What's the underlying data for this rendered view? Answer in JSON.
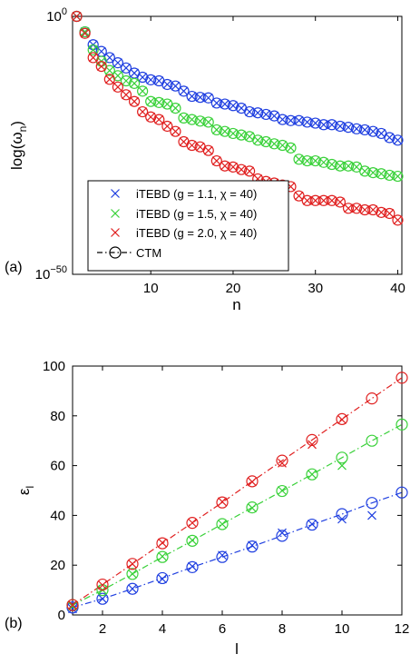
{
  "colors": {
    "g11": "#1f3fe0",
    "g15": "#3ad13a",
    "g20": "#e02020",
    "axis": "#000000"
  },
  "chart_data": [
    {
      "id": "a",
      "type": "scatter",
      "panel_label": "(a)",
      "xlabel": "n",
      "ylabel": "log(ω_n)",
      "ylabel_main": "log(ω",
      "ylabel_sub": "n",
      "ylabel_close": ")",
      "xlim": [
        0.5,
        40.5
      ],
      "ylim": [
        -50,
        0
      ],
      "y_scale": "log10 (exponent shown)",
      "xticks": [
        10,
        20,
        30,
        40
      ],
      "xtick_labels": [
        "10",
        "20",
        "30",
        "40"
      ],
      "yticks": [
        {
          "value": 0,
          "base": "10",
          "exp": "0"
        },
        {
          "value": -50,
          "base": "10",
          "exp": "−50"
        }
      ],
      "grid": false,
      "legend_position": "bottom-left",
      "legend": [
        {
          "label": "iTEBD (g = 1.1, χ = 40)",
          "marker": "x",
          "color_key": "g11"
        },
        {
          "label": "iTEBD (g = 1.5, χ = 40)",
          "marker": "x",
          "color_key": "g15"
        },
        {
          "label": "iTEBD (g = 2.0, χ = 40)",
          "marker": "x",
          "color_key": "g20"
        },
        {
          "label": "CTM",
          "marker": "o-dashdot",
          "color_key": "axis"
        }
      ],
      "x": [
        1,
        2,
        3,
        4,
        5,
        6,
        7,
        8,
        9,
        10,
        11,
        12,
        13,
        14,
        15,
        16,
        17,
        18,
        19,
        20,
        21,
        22,
        23,
        24,
        25,
        26,
        27,
        28,
        29,
        30,
        31,
        32,
        33,
        34,
        35,
        36,
        37,
        38,
        39,
        40
      ],
      "series": [
        {
          "name": "g = 1.1",
          "color_key": "g11",
          "values": [
            0,
            -3,
            -5.5,
            -6.8,
            -8,
            -9,
            -10,
            -11,
            -11.8,
            -12.3,
            -12.5,
            -13.2,
            -13.5,
            -14.5,
            -15.5,
            -15.7,
            -15.8,
            -16.8,
            -17,
            -17.3,
            -17.8,
            -18.5,
            -18.7,
            -19,
            -19.3,
            -20,
            -20.2,
            -20.2,
            -20.5,
            -20.7,
            -21,
            -21,
            -21.3,
            -21.5,
            -21.8,
            -22,
            -22.3,
            -22.7,
            -23.5,
            -24
          ]
        },
        {
          "name": "g = 1.5",
          "color_key": "g15",
          "values": [
            0,
            -3,
            -6.5,
            -8.7,
            -10.5,
            -11.5,
            -12.5,
            -13,
            -14.5,
            -16.5,
            -16.7,
            -17,
            -17.8,
            -19.7,
            -20,
            -20.3,
            -20.5,
            -22,
            -22.3,
            -22.7,
            -23,
            -23.3,
            -24,
            -24.3,
            -24.7,
            -25,
            -25.5,
            -27.7,
            -28,
            -28,
            -28.3,
            -28.7,
            -29,
            -29,
            -29.2,
            -30,
            -30.3,
            -30.5,
            -30.8,
            -31
          ]
        },
        {
          "name": "g = 2.0",
          "color_key": "g20",
          "values": [
            0,
            -3.3,
            -8,
            -9.7,
            -12.2,
            -13.7,
            -15.2,
            -16.5,
            -18.5,
            -19.5,
            -20,
            -21.3,
            -22.3,
            -24.3,
            -25,
            -25.3,
            -26,
            -28,
            -29,
            -29.2,
            -29.7,
            -30,
            -31.5,
            -32,
            -32.3,
            -32.7,
            -33,
            -34.8,
            -35.7,
            -35.7,
            -35.7,
            -35.7,
            -36,
            -37.2,
            -37.2,
            -37.5,
            -37.5,
            -38,
            -38.2,
            -39.5
          ]
        }
      ]
    },
    {
      "id": "b",
      "type": "scatter",
      "panel_label": "(b)",
      "xlabel": "l",
      "ylabel": "ε_l",
      "ylabel_main": "ε",
      "ylabel_sub": "l",
      "ylabel_close": "",
      "xlim": [
        1,
        12
      ],
      "ylim": [
        0,
        100
      ],
      "xticks": [
        2,
        4,
        6,
        8,
        10,
        12
      ],
      "xtick_labels": [
        "2",
        "4",
        "6",
        "8",
        "10",
        "12"
      ],
      "yticks": [
        {
          "value": 0,
          "label": "0"
        },
        {
          "value": 20,
          "label": "20"
        },
        {
          "value": 40,
          "label": "40"
        },
        {
          "value": 60,
          "label": "60"
        },
        {
          "value": 80,
          "label": "80"
        },
        {
          "value": 100,
          "label": "100"
        }
      ],
      "grid": false,
      "x": [
        1,
        2,
        3,
        4,
        5,
        6,
        7,
        8,
        9,
        10,
        11,
        12
      ],
      "series": [
        {
          "name": "g = 1.1 iTEBD",
          "color_key": "g11",
          "marker": "x",
          "values": [
            2.5,
            6.5,
            10.5,
            14.5,
            19.5,
            24,
            28,
            33,
            36.5,
            38.5,
            40,
            null
          ]
        },
        {
          "name": "g = 1.1 CTM",
          "color_key": "g11",
          "marker": "o-dashdot",
          "values": [
            3,
            6.5,
            10.5,
            14.8,
            19.2,
            23.3,
            27.5,
            31.8,
            36.3,
            40.5,
            45,
            49.2
          ]
        },
        {
          "name": "g = 1.5 iTEBD",
          "color_key": "g15",
          "marker": "x",
          "values": [
            3.5,
            10,
            16.5,
            23.5,
            30,
            36.5,
            43,
            50,
            56.5,
            60,
            null,
            null
          ]
        },
        {
          "name": "g = 1.5 CTM",
          "color_key": "g15",
          "marker": "o-dashdot",
          "values": [
            4,
            10,
            16.5,
            23.3,
            29.8,
            36.5,
            43.2,
            49.8,
            56.5,
            63.2,
            70,
            76.5
          ]
        },
        {
          "name": "g = 2.0 iTEBD",
          "color_key": "g20",
          "marker": "x",
          "values": [
            4,
            12,
            20.5,
            29,
            37,
            45.5,
            53.5,
            61,
            68.5,
            78.5,
            null,
            null
          ]
        },
        {
          "name": "g = 2.0 CTM",
          "color_key": "g20",
          "marker": "o-dashdot",
          "values": [
            4,
            12.2,
            20.5,
            28.8,
            37,
            45.2,
            53.7,
            62,
            70.3,
            78.7,
            87,
            95.3
          ]
        }
      ]
    }
  ]
}
